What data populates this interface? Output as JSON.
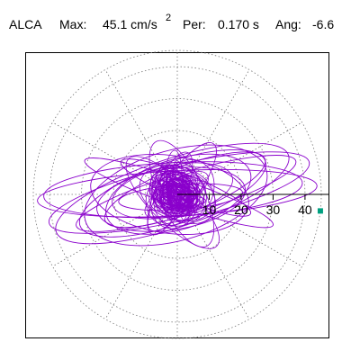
{
  "header": {
    "station": "ALCA",
    "max_label": "Max:",
    "max_value": "45.1 cm/s",
    "max_unit_exp": "2",
    "per_label": "Per:",
    "per_value": "0.170 s",
    "ang_label": "Ang:",
    "ang_value": "-6.6"
  },
  "chart_data": {
    "type": "scatter",
    "description": "polar particle-motion plot of ground acceleration",
    "radial_ticks": [
      10,
      20,
      30,
      40
    ],
    "radial_tick_labels": [
      "10",
      "20",
      "30",
      "40"
    ],
    "rlim": [
      0,
      45.1
    ],
    "angular_grid_step_deg": 30,
    "max_marker": {
      "r": 45.1,
      "angle_deg": -6.6
    },
    "grid": true,
    "colors": {
      "trace": "#8a00cc",
      "marker": "#00a080",
      "grid": "#777777",
      "axis": "#000000"
    }
  }
}
